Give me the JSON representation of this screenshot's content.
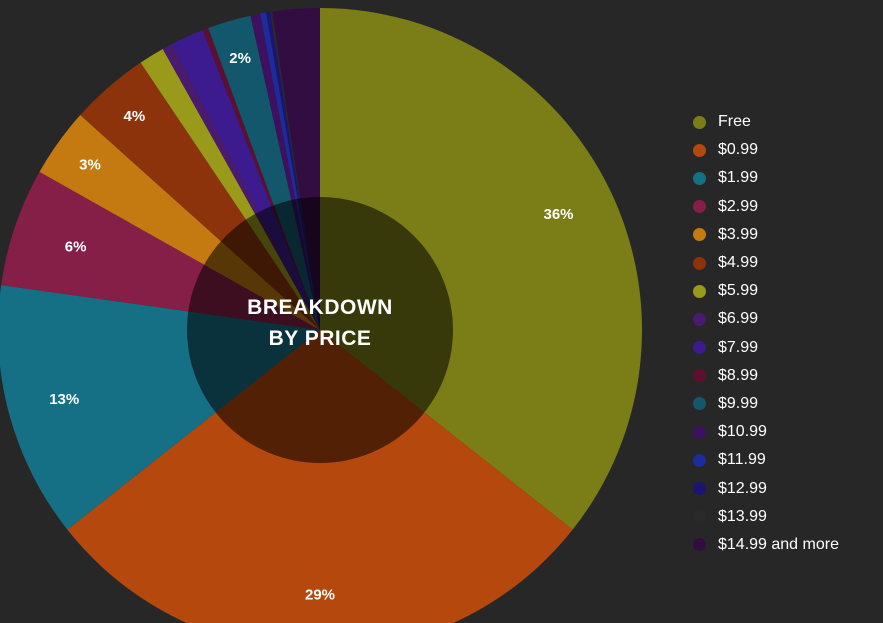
{
  "chart_data": {
    "type": "pie",
    "title_lines": [
      "BREAKDOWN",
      "BY PRICE"
    ],
    "slices": [
      {
        "name": "Free",
        "value": 36,
        "label": "36%",
        "color": "#7b7e17"
      },
      {
        "name": "$0.99",
        "value": 29,
        "label": "29%",
        "color": "#b5480c"
      },
      {
        "name": "$1.99",
        "value": 13,
        "label": "13%",
        "color": "#157086"
      },
      {
        "name": "$2.99",
        "value": 6,
        "label": "6%",
        "color": "#861f48"
      },
      {
        "name": "$3.99",
        "value": 3.5,
        "label": "3%",
        "color": "#c47a10"
      },
      {
        "name": "$4.99",
        "value": 4,
        "label": "4%",
        "color": "#8c330c"
      },
      {
        "name": "$5.99",
        "value": 1.3,
        "label": "",
        "color": "#9a9a1a"
      },
      {
        "name": "$6.99",
        "value": 0.5,
        "label": "",
        "color": "#4a1a6e"
      },
      {
        "name": "$7.99",
        "value": 1.7,
        "label": "",
        "color": "#3c1b8e"
      },
      {
        "name": "$8.99",
        "value": 0.3,
        "label": "",
        "color": "#5c1030"
      },
      {
        "name": "$9.99",
        "value": 2.2,
        "label": "2%",
        "color": "#12576c"
      },
      {
        "name": "$10.99",
        "value": 0.5,
        "label": "",
        "color": "#3e1060"
      },
      {
        "name": "$11.99",
        "value": 0.3,
        "label": "",
        "color": "#1c2c9a"
      },
      {
        "name": "$12.99",
        "value": 0.2,
        "label": "",
        "color": "#1c1470"
      },
      {
        "name": "$13.99",
        "value": 0.1,
        "label": "",
        "color": "#2a2a2a"
      },
      {
        "name": "$14.99 and more",
        "value": 2.4,
        "label": "",
        "color": "#320d42"
      }
    ]
  }
}
